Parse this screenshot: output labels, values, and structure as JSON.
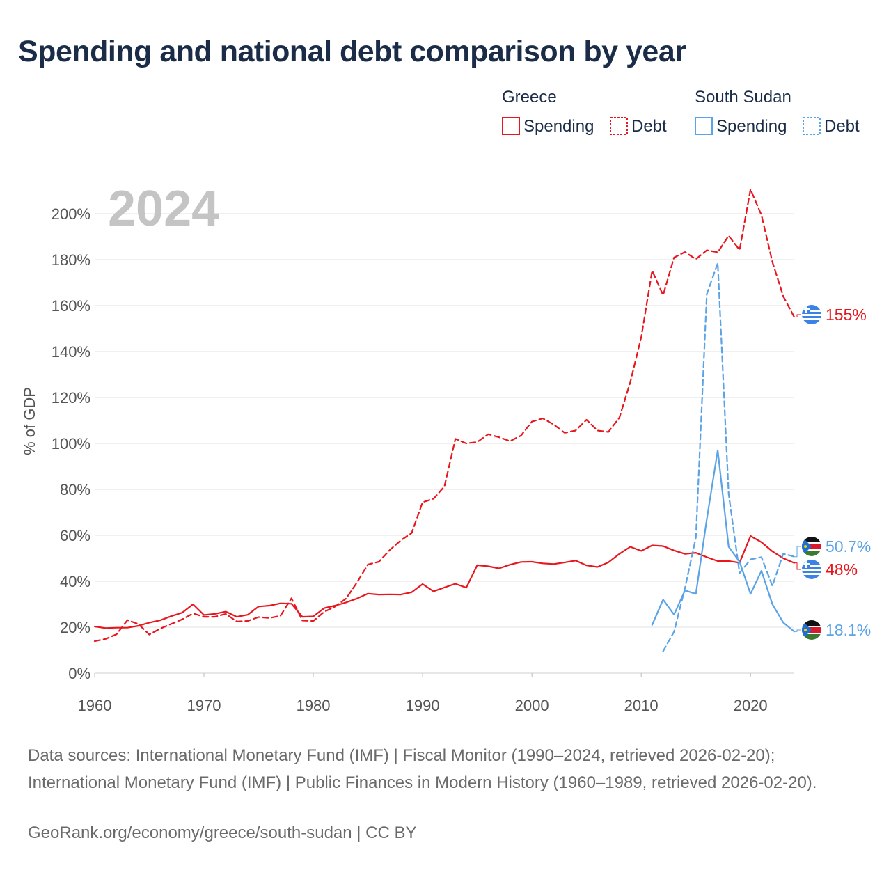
{
  "title": "Spending and national debt comparison by year",
  "year_label": "2024",
  "sources": "Data sources: International Monetary Fund (IMF) | Fiscal Monitor (1990–2024, retrieved 2026-02-20); International Monetary Fund (IMF) | Public Finances in Modern History (1960–1989, retrieved 2026-02-20).",
  "site": "GeoRank.org/economy/greece/south-sudan | CC BY",
  "colors": {
    "greece": "#e8161d",
    "south_sudan": "#5aa3e6",
    "grid": "#e2e2e2",
    "text": "#555555"
  },
  "legend": {
    "groups": [
      {
        "country": "Greece",
        "spending_label": "Spending",
        "debt_label": "Debt"
      },
      {
        "country": "South Sudan",
        "spending_label": "Spending",
        "debt_label": "Debt"
      }
    ]
  },
  "chart_data": {
    "type": "line",
    "title": "Spending and national debt comparison by year",
    "ylabel": "% of GDP",
    "xlabel": "",
    "xlim": [
      1960,
      2024
    ],
    "ylim": [
      0,
      210
    ],
    "x_ticks": [
      1960,
      1970,
      1980,
      1990,
      2000,
      2010,
      2020
    ],
    "y_ticks": [
      0,
      20,
      40,
      60,
      80,
      100,
      120,
      140,
      160,
      180,
      200
    ],
    "y_tick_labels": [
      "0%",
      "20%",
      "40%",
      "60%",
      "80%",
      "100%",
      "120%",
      "140%",
      "160%",
      "180%",
      "200%"
    ],
    "series": [
      {
        "name": "Greece Spending",
        "country": "Greece",
        "kind": "spending",
        "style": "solid",
        "x_start": 1960,
        "values": [
          20.3,
          19.6,
          19.8,
          19.8,
          20.6,
          22.0,
          23.0,
          24.8,
          26.3,
          30.0,
          25.3,
          25.8,
          26.8,
          24.5,
          25.4,
          29.0,
          29.4,
          30.4,
          30.2,
          24.5,
          24.7,
          28.3,
          29.4,
          30.8,
          32.5,
          34.6,
          34.2,
          34.3,
          34.2,
          35.2,
          38.8,
          35.6,
          37.3,
          38.9,
          37.2,
          47.0,
          46.5,
          45.6,
          47.2,
          48.4,
          48.5,
          47.8,
          47.5,
          48.2,
          49.0,
          46.9,
          46.2,
          48.2,
          51.9,
          55.0,
          53.2,
          55.6,
          55.3,
          53.4,
          51.9,
          52.4,
          50.5,
          48.8,
          48.8,
          48.1,
          59.7,
          57.0,
          53.0,
          50.0,
          48.0
        ]
      },
      {
        "name": "Greece Debt",
        "country": "Greece",
        "kind": "debt",
        "style": "dashed",
        "x_start": 1960,
        "values": [
          13.9,
          14.9,
          16.9,
          23.1,
          21.4,
          16.8,
          19.4,
          21.4,
          23.4,
          26.0,
          24.5,
          24.5,
          25.8,
          22.5,
          22.7,
          24.4,
          24.0,
          25.0,
          32.6,
          22.9,
          22.7,
          26.7,
          29.0,
          32.5,
          39.5,
          47.3,
          48.5,
          53.6,
          57.8,
          61.0,
          74.4,
          75.9,
          81.3,
          102.0,
          100.0,
          100.6,
          104.0,
          102.7,
          101.0,
          103.4,
          109.5,
          110.9,
          108.2,
          104.6,
          105.6,
          110.3,
          105.6,
          105.0,
          111.2,
          126.7,
          146.2,
          175.2,
          164.5,
          180.9,
          183.3,
          180.2,
          184.1,
          183.2,
          190.4,
          184.2,
          210.6,
          199.4,
          179.0,
          164.0,
          155.0
        ]
      },
      {
        "name": "South Sudan Spending",
        "country": "South Sudan",
        "kind": "spending",
        "style": "solid",
        "x_start": 2011,
        "values": [
          21.0,
          32.0,
          25.5,
          36.0,
          34.5,
          67.0,
          97.0,
          55.0,
          48.5,
          34.5,
          44.5,
          30.0,
          22.0,
          18.1
        ]
      },
      {
        "name": "South Sudan Debt",
        "country": "South Sudan",
        "kind": "debt",
        "style": "dashed",
        "x_start": 2012,
        "values": [
          9.5,
          18.0,
          37.0,
          59.0,
          165.0,
          178.5,
          78.0,
          43.5,
          49.5,
          50.5,
          38.0,
          52.0,
          50.7
        ]
      }
    ],
    "end_labels": [
      {
        "series": "Greece Debt",
        "value": 155,
        "text": "155%",
        "flag": "greece-flag-icon"
      },
      {
        "series": "South Sudan Debt",
        "value": 50.7,
        "text": "50.7%",
        "flag": "south-sudan-flag-icon"
      },
      {
        "series": "Greece Spending",
        "value": 48,
        "text": "48%",
        "flag": "greece-flag-icon"
      },
      {
        "series": "South Sudan Spending",
        "value": 18.1,
        "text": "18.1%",
        "flag": "south-sudan-flag-icon"
      }
    ]
  }
}
